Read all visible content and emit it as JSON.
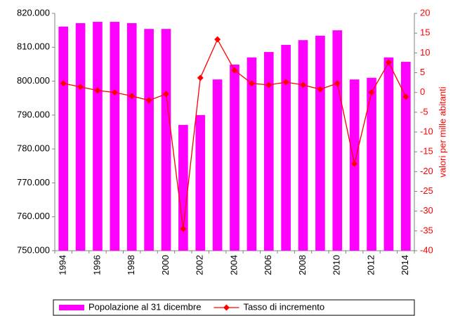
{
  "chart_data": {
    "type": "bar",
    "categories": [
      "1994",
      null,
      "1996",
      null,
      "1998",
      null,
      "2000",
      null,
      "2002",
      null,
      "2004",
      null,
      "2006",
      null,
      "2008",
      null,
      "2010",
      null,
      "2012",
      null,
      "2014"
    ],
    "series": [
      {
        "name": "Popolazione al 31 dicembre",
        "type": "bar",
        "color": "#ff00ff",
        "values": [
          816100,
          817100,
          817500,
          817500,
          817100,
          815400,
          815400,
          787100,
          790000,
          800500,
          804900,
          807000,
          808600,
          810700,
          812100,
          813400,
          815000,
          800500,
          801000,
          807000,
          805700
        ]
      },
      {
        "name": "Tasso di incremento",
        "type": "line",
        "axis": "y2",
        "color": "#ff0000",
        "values": [
          2.3,
          1.4,
          0.5,
          0,
          -0.9,
          -2,
          -0.4,
          -34.5,
          3.7,
          13.4,
          5.6,
          2.3,
          1.9,
          2.6,
          1.9,
          0.8,
          2.3,
          -18,
          0,
          7.6,
          -1.1
        ]
      }
    ],
    "ylim": [
      750000,
      820000
    ],
    "yticks": [
      {
        "value": 750000,
        "label": "750.000"
      },
      {
        "value": 760000,
        "label": "760.000"
      },
      {
        "value": 770000,
        "label": "770.000"
      },
      {
        "value": 780000,
        "label": "780.000"
      },
      {
        "value": 790000,
        "label": "790.000"
      },
      {
        "value": 800000,
        "label": "800.000"
      },
      {
        "value": 810000,
        "label": "810.000"
      },
      {
        "value": 820000,
        "label": "820.000"
      }
    ],
    "y2lim": [
      -40,
      20
    ],
    "y2ticks": [
      -40,
      -35,
      -30,
      -25,
      -20,
      -15,
      -10,
      -5,
      0,
      5,
      10,
      15,
      20
    ],
    "y2label": "valori per mille abitanti",
    "y2color": "#ff0000",
    "legend": "bottom"
  }
}
